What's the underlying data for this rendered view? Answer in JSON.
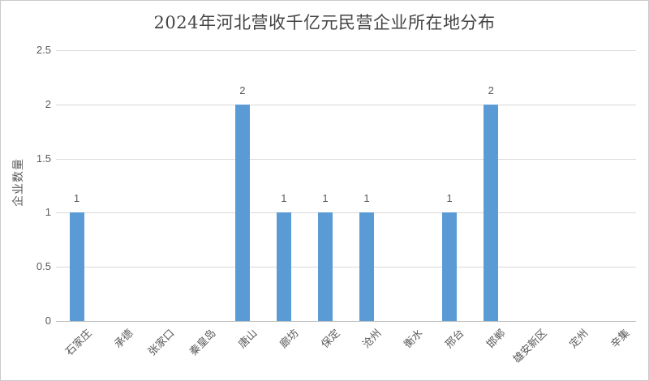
{
  "chart": {
    "title": "2024年河北营收千亿元民营企业所在地分布",
    "ylabel": "企业数量"
  },
  "chart_data": {
    "type": "bar",
    "title": "2024年河北营收千亿元民营企业所在地分布",
    "xlabel": "",
    "ylabel": "企业数量",
    "categories": [
      "石家庄",
      "承德",
      "张家口",
      "秦皇岛",
      "唐山",
      "廊坊",
      "保定",
      "沧州",
      "衡水",
      "邢台",
      "邯郸",
      "雄安新区",
      "定州",
      "辛集"
    ],
    "values": [
      1,
      0,
      0,
      0,
      2,
      1,
      1,
      1,
      0,
      1,
      2,
      0,
      0,
      0
    ],
    "data_labels": [
      "1",
      "",
      "",
      "",
      "2",
      "1",
      "1",
      "1",
      "",
      "1",
      "2",
      "",
      "",
      ""
    ],
    "ylim": [
      0,
      2.5
    ],
    "yticks": [
      0,
      0.5,
      1,
      1.5,
      2,
      2.5
    ],
    "ytick_labels": [
      "0",
      "0.5",
      "1",
      "1.5",
      "2",
      "2.5"
    ],
    "grid": true,
    "legend": false,
    "bar_color": "#5B9BD5",
    "gridline_color": "#D9D9D9",
    "axis_line_color": "#BFBFBF",
    "label_color": "#595959",
    "title_color": "#444444"
  }
}
